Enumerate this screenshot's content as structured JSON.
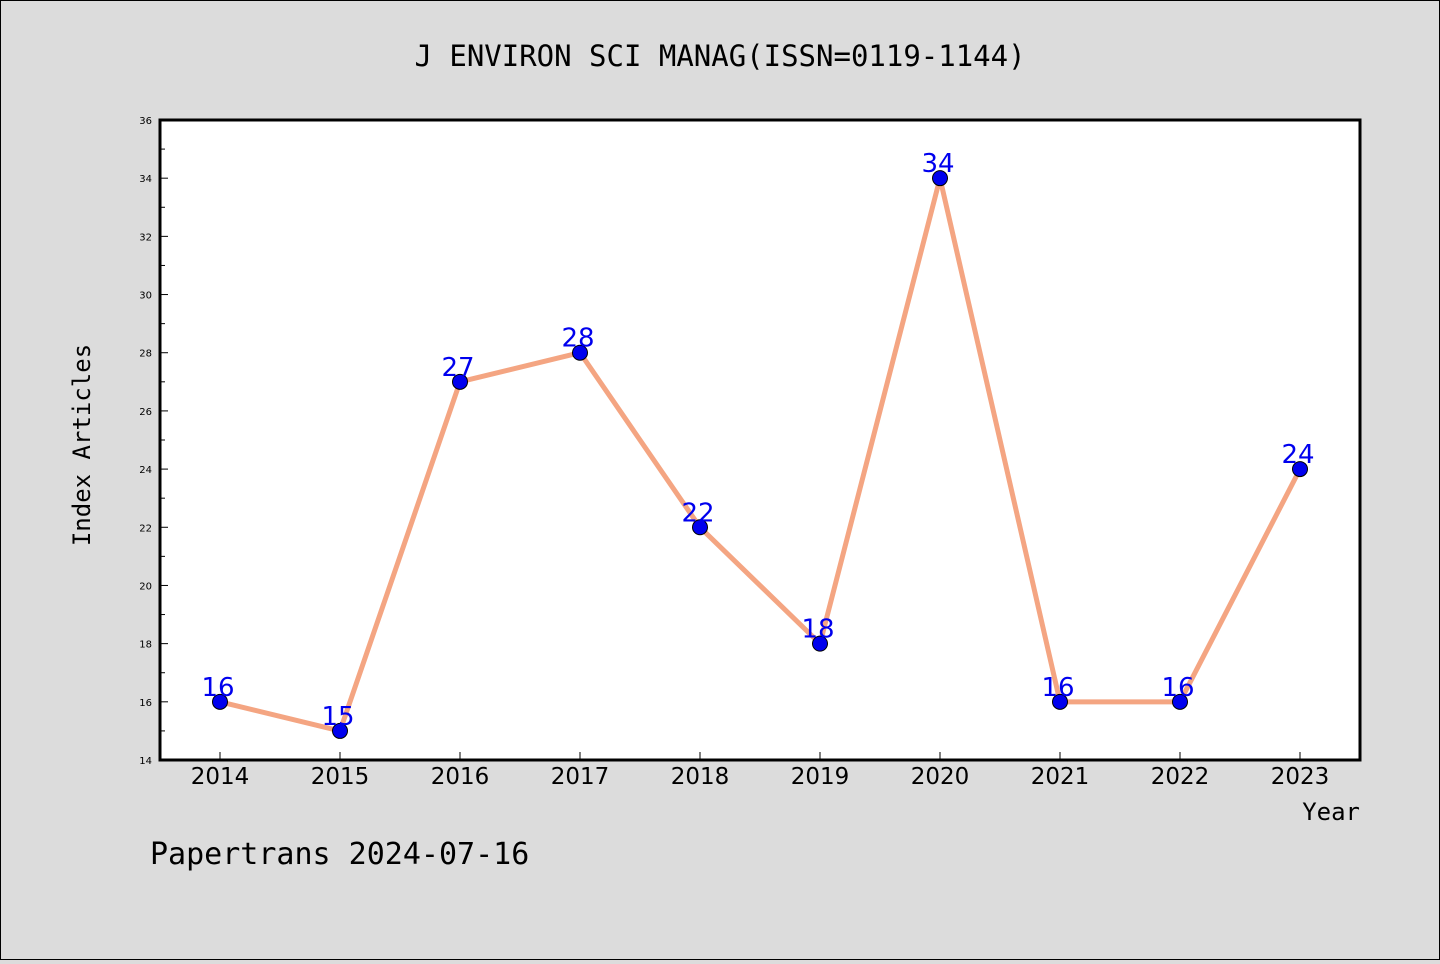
{
  "chart_data": {
    "type": "line",
    "title": "J ENVIRON SCI MANAG(ISSN=0119-1144)",
    "xlabel": "Year",
    "ylabel": "Index Articles",
    "footer": "Papertrans 2024-07-16",
    "categories": [
      "2014",
      "2015",
      "2016",
      "2017",
      "2018",
      "2019",
      "2020",
      "2021",
      "2022",
      "2023"
    ],
    "series": [
      {
        "values": [
          16,
          15,
          27,
          28,
          22,
          18,
          34,
          16,
          16,
          24
        ],
        "labels": [
          "16",
          "15",
          "27",
          "28",
          "22",
          "18",
          "34",
          "16",
          "16",
          "24"
        ]
      }
    ],
    "ylim": [
      14,
      36
    ],
    "yticks": [
      "14",
      "16",
      "18",
      "20",
      "22",
      "24",
      "26",
      "28",
      "30",
      "32",
      "34",
      "36"
    ],
    "grid": false,
    "line_color": "#f4a582",
    "marker_color": "#0000ee",
    "label_color": "#0000ee"
  }
}
